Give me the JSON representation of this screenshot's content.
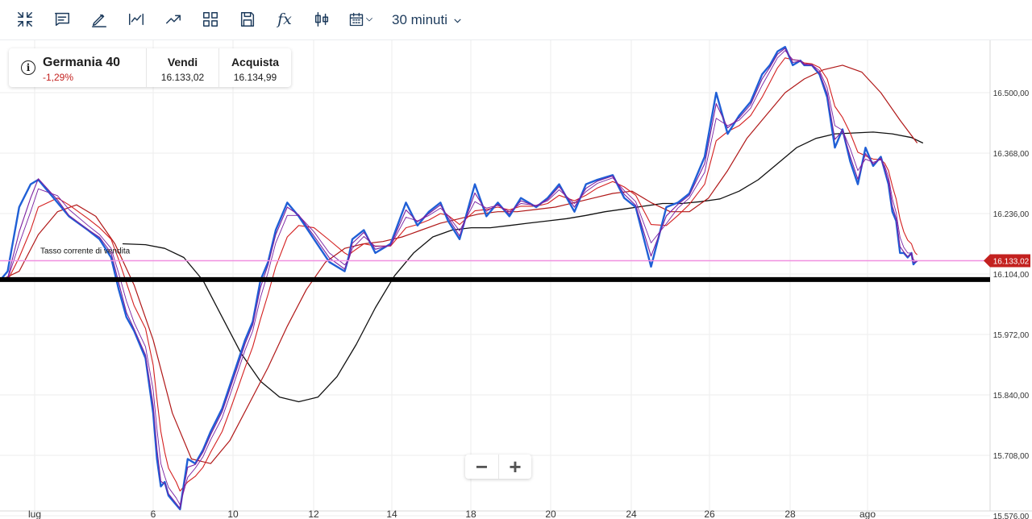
{
  "toolbar": {
    "buttons": [
      "collapse",
      "comment",
      "draw",
      "indicator",
      "trend",
      "layout",
      "save",
      "fx",
      "candles",
      "calendar"
    ],
    "fx_label": "fx",
    "timeframe": "30 minuti"
  },
  "instrument": {
    "name": "Germania 40",
    "change": "-1,29%",
    "sell_label": "Vendi",
    "sell_price": "16.133,02",
    "buy_label": "Acquista",
    "buy_price": "16.134,99"
  },
  "zoom": {
    "minus": "−",
    "plus": "+"
  },
  "colors": {
    "price": "#1f5fd6",
    "ma_fast": "#7a1fa0",
    "ma_slow_1": "#d42020",
    "ma_slow_2": "#b01818",
    "ma_long": "#111111",
    "current_line": "#f090e0",
    "support_line": "#000000",
    "price_tag": "#c3211f"
  },
  "chart_data": {
    "type": "line",
    "title": "",
    "x_ticks": [
      "lug",
      "6",
      "10",
      "12",
      "14",
      "18",
      "20",
      "24",
      "26",
      "28",
      "ago"
    ],
    "y_ticks": [
      15576,
      15708,
      15840,
      15972,
      16104,
      16236,
      16368,
      16500
    ],
    "y_tick_labels": [
      "15.576,00",
      "15.708,00",
      "15.840,00",
      "15.972,00",
      "16.104,00",
      "16.236,00",
      "16.368,00",
      "16.500,00"
    ],
    "ylim": [
      15570,
      16620
    ],
    "current_price": 16133.02,
    "current_price_label": "16.133,02",
    "current_line_label": "Tasso corrente di vendita",
    "support_level": 16092,
    "grid": true,
    "series": [
      {
        "role": "price",
        "x": [
          0,
          0.2,
          0.5,
          0.8,
          1.0,
          1.5,
          1.8,
          2.3,
          2.6,
          2.9,
          3.1,
          3.3,
          3.5,
          3.8,
          4.0,
          4.1,
          4.2,
          4.3,
          4.4,
          4.6,
          4.7,
          4.9,
          5.1,
          5.3,
          5.5,
          5.8,
          6.0,
          6.2,
          6.4,
          6.6,
          6.8,
          7.0,
          7.2,
          7.5,
          7.8,
          8.2,
          8.6,
          9.0,
          9.1,
          9.2,
          9.5,
          9.8,
          10.2,
          10.6,
          10.9,
          11.2,
          11.5,
          11.7,
          12.0,
          12.4,
          12.7,
          13.0,
          13.3,
          13.6,
          14.0,
          14.3,
          14.6,
          15.0,
          15.3,
          15.6,
          16.0,
          16.3,
          16.6,
          17.0,
          17.4,
          17.7,
          18.0,
          18.4,
          18.7,
          19.0,
          19.3,
          19.6,
          19.9,
          20.1,
          20.3,
          20.5,
          20.7,
          20.9,
          21.0,
          21.2,
          21.4,
          21.6,
          21.8,
          22.0,
          22.2,
          22.4,
          22.6,
          22.8,
          23.0,
          23.1,
          23.2,
          23.3,
          23.4,
          23.5,
          23.6,
          23.7,
          23.8,
          23.85,
          23.9,
          23.95
        ],
        "y": [
          16090,
          16110,
          16250,
          16300,
          16310,
          16260,
          16230,
          16200,
          16180,
          16140,
          16070,
          16010,
          15980,
          15920,
          15800,
          15700,
          15640,
          15650,
          15620,
          15600,
          15590,
          15700,
          15690,
          15720,
          15760,
          15810,
          15860,
          15910,
          15960,
          16000,
          16090,
          16130,
          16200,
          16260,
          16230,
          16180,
          16130,
          16110,
          16140,
          16180,
          16200,
          16150,
          16170,
          16260,
          16210,
          16240,
          16260,
          16220,
          16180,
          16300,
          16230,
          16260,
          16230,
          16270,
          16250,
          16270,
          16300,
          16240,
          16300,
          16310,
          16320,
          16270,
          16250,
          16120,
          16250,
          16260,
          16280,
          16360,
          16500,
          16410,
          16450,
          16480,
          16540,
          16560,
          16590,
          16600,
          16560,
          16570,
          16560,
          16560,
          16540,
          16490,
          16380,
          16420,
          16350,
          16300,
          16380,
          16340,
          16360,
          16330,
          16300,
          16240,
          16220,
          16150,
          16150,
          16140,
          16150,
          16125,
          16130,
          16133
        ]
      },
      {
        "role": "ma_fast",
        "x": [
          0,
          0.2,
          0.5,
          0.8,
          1.0,
          1.5,
          1.8,
          2.3,
          2.6,
          2.9,
          3.1,
          3.3,
          3.5,
          3.8,
          4.0,
          4.1,
          4.2,
          4.3,
          4.4,
          4.6,
          4.7,
          4.9,
          5.1,
          5.3,
          5.5,
          5.8,
          6.0,
          6.2,
          6.4,
          6.6,
          6.8,
          7.0,
          7.2,
          7.5,
          7.8,
          8.2,
          8.6,
          9.0,
          9.1,
          9.2,
          9.5,
          9.8,
          10.2,
          10.6,
          10.9,
          11.2,
          11.5,
          11.7,
          12.0,
          12.4,
          12.7,
          13.0,
          13.3,
          13.6,
          14.0,
          14.3,
          14.6,
          15.0,
          15.3,
          15.6,
          16.0,
          16.3,
          16.6,
          17.0,
          17.4,
          17.7,
          18.0,
          18.4,
          18.7,
          19.0,
          19.3,
          19.6,
          19.9,
          20.1,
          20.3,
          20.5,
          20.7,
          20.9,
          21.0,
          21.2,
          21.4,
          21.6,
          21.8,
          22.0,
          22.2,
          22.4,
          22.6,
          22.8,
          23.0,
          23.1,
          23.2,
          23.3,
          23.4,
          23.5,
          23.6,
          23.7,
          23.8,
          23.85,
          23.9,
          23.95
        ],
        "y": [
          16090,
          16095,
          16196,
          16270,
          16312,
          16266,
          16232,
          16201,
          16184,
          16150,
          16085,
          16020,
          15984,
          15927,
          15817,
          15721,
          15651,
          15646,
          15624,
          15603,
          15592,
          15682,
          15688,
          15715,
          15753,
          15803,
          15852,
          15901,
          15952,
          15993,
          16074,
          16124,
          16190,
          16250,
          16233,
          16187,
          16139,
          16115,
          16136,
          16171,
          16195,
          16158,
          16167,
          16244,
          16218,
          16236,
          16255,
          16227,
          16187,
          16281,
          16241,
          16256,
          16235,
          16264,
          16252,
          16267,
          16295,
          16250,
          16291,
          16307,
          16318,
          16278,
          16254,
          16143,
          16231,
          16256,
          16276,
          16345,
          16476,
          16423,
          16445,
          16474,
          16530,
          16555,
          16584,
          16597,
          16566,
          16569,
          16561,
          16560,
          16543,
          16498,
          16398,
          16417,
          16361,
          16311,
          16367,
          16344,
          16357,
          16334,
          16306,
          16252,
          16225,
          16164,
          16152,
          16142,
          16148,
          16129,
          16130,
          16132
        ]
      },
      {
        "role": "ma_medium",
        "x": [
          0,
          0.2,
          0.5,
          0.8,
          1.0,
          1.5,
          1.8,
          2.3,
          2.6,
          2.9,
          3.1,
          3.3,
          3.5,
          3.8,
          4.0,
          4.1,
          4.2,
          4.3,
          4.4,
          4.6,
          4.7,
          4.9,
          5.1,
          5.3,
          5.5,
          5.8,
          6.0,
          6.2,
          6.4,
          6.6,
          6.8,
          7.0,
          7.2,
          7.5,
          7.8,
          8.2,
          8.6,
          9.0,
          9.1,
          9.2,
          9.5,
          9.8,
          10.2,
          10.6,
          10.9,
          11.2,
          11.5,
          11.7,
          12.0,
          12.4,
          12.7,
          13.0,
          13.3,
          13.6,
          14.0,
          14.3,
          14.6,
          15.0,
          15.3,
          15.6,
          16.0,
          16.3,
          16.6,
          17.0,
          17.4,
          17.7,
          18.0,
          18.4,
          18.7,
          19.0,
          19.3,
          19.6,
          19.9,
          20.1,
          20.3,
          20.5,
          20.7,
          20.9,
          21.0,
          21.2,
          21.4,
          21.6,
          21.8,
          22.0,
          22.2,
          22.4,
          22.6,
          22.8,
          23.0,
          23.1,
          23.2,
          23.3,
          23.4,
          23.5,
          23.6,
          23.7,
          23.8,
          23.85,
          23.9,
          23.95
        ],
        "y": [
          16090,
          16092,
          16170,
          16240,
          16290,
          16275,
          16245,
          16210,
          16190,
          16160,
          16105,
          16045,
          15998,
          15945,
          15850,
          15765,
          15690,
          15662,
          15638,
          15615,
          15600,
          15660,
          15680,
          15705,
          15742,
          15790,
          15838,
          15888,
          15938,
          15980,
          16052,
          16108,
          16172,
          16232,
          16232,
          16196,
          16150,
          16124,
          16134,
          16160,
          16186,
          16164,
          16166,
          16228,
          16220,
          16232,
          16248,
          16232,
          16198,
          16262,
          16248,
          16254,
          16240,
          16258,
          16254,
          16264,
          16288,
          16258,
          16284,
          16302,
          16314,
          16286,
          16262,
          16172,
          16214,
          16248,
          16270,
          16326,
          16444,
          16428,
          16440,
          16466,
          16516,
          16546,
          16576,
          16592,
          16572,
          16570,
          16563,
          16561,
          16548,
          16510,
          16428,
          16418,
          16378,
          16330,
          16355,
          16348,
          16354,
          16340,
          16316,
          16268,
          16238,
          16184,
          16162,
          16150,
          16150,
          16136,
          16132,
          16132
        ]
      },
      {
        "role": "ma_slow_1",
        "x": [
          0,
          0.2,
          0.5,
          0.8,
          1.0,
          1.5,
          1.8,
          2.3,
          2.6,
          2.9,
          3.1,
          3.3,
          3.5,
          3.8,
          4.0,
          4.1,
          4.2,
          4.3,
          4.4,
          4.6,
          4.7,
          4.9,
          5.1,
          5.3,
          5.5,
          5.8,
          6.0,
          6.2,
          6.4,
          6.6,
          6.8,
          7.0,
          7.2,
          7.5,
          7.8,
          8.2,
          8.6,
          9.0,
          9.1,
          9.2,
          9.5,
          9.8,
          10.2,
          10.6,
          10.9,
          11.2,
          11.5,
          11.7,
          12.0,
          12.4,
          12.7,
          13.0,
          13.3,
          13.6,
          14.0,
          14.3,
          14.6,
          15.0,
          15.3,
          15.6,
          16.0,
          16.3,
          16.6,
          17.0,
          17.4,
          17.7,
          18.0,
          18.4,
          18.7,
          19.0,
          19.3,
          19.6,
          19.9,
          20.1,
          20.3,
          20.5,
          20.7,
          20.9,
          21.0,
          21.2,
          21.4,
          21.6,
          21.8,
          22.0,
          22.2,
          22.4,
          22.6,
          22.8,
          23.0,
          23.1,
          23.2,
          23.3,
          23.4,
          23.5,
          23.6,
          23.7,
          23.8,
          23.85,
          23.9,
          23.95
        ],
        "y": [
          16090,
          16090,
          16140,
          16200,
          16250,
          16270,
          16255,
          16225,
          16205,
          16180,
          16135,
          16085,
          16035,
          15985,
          15905,
          15830,
          15760,
          15715,
          15680,
          15650,
          15630,
          15650,
          15662,
          15682,
          15715,
          15760,
          15805,
          15852,
          15900,
          15945,
          16005,
          16060,
          16120,
          16185,
          16210,
          16205,
          16178,
          16150,
          16145,
          16152,
          16170,
          16165,
          16165,
          16205,
          16212,
          16222,
          16236,
          16232,
          16212,
          16242,
          16245,
          16250,
          16244,
          16252,
          16252,
          16258,
          16276,
          16264,
          16276,
          16292,
          16306,
          16294,
          16276,
          16212,
          16210,
          16232,
          16256,
          16300,
          16395,
          16415,
          16428,
          16450,
          16490,
          16522,
          16554,
          16576,
          16572,
          16570,
          16565,
          16563,
          16555,
          16530,
          16470,
          16446,
          16412,
          16370,
          16362,
          16355,
          16354,
          16346,
          16330,
          16296,
          16268,
          16224,
          16196,
          16178,
          16170,
          16158,
          16150,
          16146
        ]
      },
      {
        "role": "ma_slow_2",
        "x": [
          0,
          0.5,
          1.0,
          1.5,
          2.0,
          2.5,
          3.0,
          3.5,
          4.0,
          4.5,
          5.0,
          5.5,
          6.0,
          6.5,
          7.0,
          7.5,
          8.0,
          8.5,
          9.0,
          9.5,
          10.0,
          10.5,
          11.0,
          11.5,
          12.0,
          12.5,
          13.0,
          13.5,
          14.0,
          14.5,
          15.0,
          15.5,
          16.0,
          16.5,
          17.0,
          17.5,
          18.0,
          18.5,
          19.0,
          19.5,
          20.0,
          20.5,
          21.0,
          21.5,
          22.0,
          22.5,
          23.0,
          23.5,
          23.95
        ],
        "y": [
          16090,
          16110,
          16190,
          16240,
          16255,
          16230,
          16170,
          16080,
          15960,
          15800,
          15700,
          15690,
          15740,
          15820,
          15900,
          15990,
          16070,
          16130,
          16160,
          16170,
          16175,
          16185,
          16200,
          16215,
          16225,
          16235,
          16240,
          16240,
          16245,
          16250,
          16260,
          16270,
          16280,
          16285,
          16260,
          16240,
          16240,
          16270,
          16330,
          16400,
          16450,
          16500,
          16530,
          16550,
          16560,
          16545,
          16500,
          16440,
          16390
        ]
      },
      {
        "role": "ma_long",
        "x": [
          3.2,
          3.8,
          4.3,
          4.8,
          5.3,
          5.8,
          6.3,
          6.8,
          7.3,
          7.8,
          8.3,
          8.8,
          9.3,
          9.8,
          10.3,
          10.8,
          11.3,
          11.8,
          12.3,
          12.8,
          13.3,
          13.8,
          14.3,
          14.8,
          15.3,
          15.8,
          16.3,
          16.8,
          17.3,
          17.8,
          18.3,
          18.8,
          19.3,
          19.8,
          20.3,
          20.8,
          21.3,
          21.8,
          22.3,
          22.8,
          23.3,
          23.8,
          24.1
        ],
        "y": [
          16170,
          16168,
          16160,
          16140,
          16090,
          16010,
          15930,
          15870,
          15835,
          15825,
          15835,
          15880,
          15950,
          16030,
          16100,
          16150,
          16185,
          16200,
          16205,
          16205,
          16210,
          16215,
          16220,
          16225,
          16232,
          16240,
          16246,
          16252,
          16258,
          16258,
          16262,
          16268,
          16285,
          16310,
          16345,
          16380,
          16400,
          16410,
          16412,
          16414,
          16410,
          16402,
          16390
        ]
      }
    ]
  }
}
